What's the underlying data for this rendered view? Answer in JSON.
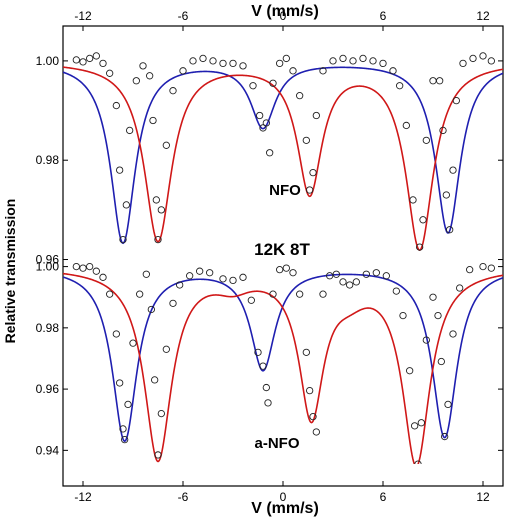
{
  "chart_data": {
    "type": "scatter",
    "x_label": "V (mm/s)",
    "y_label": "Relative transmission",
    "center_label": "12K  8T",
    "x_ticks": [
      -12,
      -6,
      0,
      6,
      12
    ],
    "xlim": [
      -13.2,
      13.2
    ],
    "panels": [
      {
        "label": "NFO",
        "ylim": [
          0.9595,
          1.003
        ],
        "y_ticks": [
          0.96,
          0.98,
          1.0
        ],
        "y_tick_labels": [
          "0.96",
          "0.98",
          "1.00"
        ],
        "series": [
          {
            "color": "#1f1fb0",
            "baseline": 1.0,
            "lines": [
              {
                "center": -9.6,
                "depth": 0.0365,
                "width": 0.9
              },
              {
                "center": -1.2,
                "depth": 0.013,
                "width": 0.9
              },
              {
                "center": 9.9,
                "depth": 0.0345,
                "width": 0.9
              }
            ]
          },
          {
            "color": "#d01818",
            "baseline": 1.0,
            "lines": [
              {
                "center": -7.5,
                "depth": 0.036,
                "width": 1.0
              },
              {
                "center": 1.6,
                "depth": 0.026,
                "width": 0.9
              },
              {
                "center": 8.2,
                "depth": 0.0375,
                "width": 1.0
              }
            ]
          }
        ],
        "points": [
          [
            -12.4,
            1.0002
          ],
          [
            -12.0,
            0.9998
          ],
          [
            -11.6,
            1.0005
          ],
          [
            -11.2,
            1.001
          ],
          [
            -10.8,
            0.9995
          ],
          [
            -10.4,
            0.9975
          ],
          [
            -10.0,
            0.991
          ],
          [
            -9.8,
            0.978
          ],
          [
            -9.6,
            0.964
          ],
          [
            -9.4,
            0.971
          ],
          [
            -9.2,
            0.986
          ],
          [
            -8.8,
            0.996
          ],
          [
            -8.4,
            0.999
          ],
          [
            -8.0,
            0.997
          ],
          [
            -7.8,
            0.988
          ],
          [
            -7.6,
            0.972
          ],
          [
            -7.5,
            0.964
          ],
          [
            -7.3,
            0.97
          ],
          [
            -7.0,
            0.983
          ],
          [
            -6.6,
            0.994
          ],
          [
            -6.0,
            0.998
          ],
          [
            -5.4,
            1.0
          ],
          [
            -4.8,
            1.0005
          ],
          [
            -4.2,
            1.0
          ],
          [
            -3.6,
            0.9995
          ],
          [
            -3.0,
            0.9995
          ],
          [
            -2.4,
            0.999
          ],
          [
            -1.8,
            0.995
          ],
          [
            -1.4,
            0.989
          ],
          [
            -1.2,
            0.9865
          ],
          [
            -1.0,
            0.9875
          ],
          [
            -0.8,
            0.9815
          ],
          [
            -0.6,
            0.9955
          ],
          [
            -0.2,
            0.9995
          ],
          [
            0.2,
            1.0005
          ],
          [
            0.6,
            0.998
          ],
          [
            1.0,
            0.993
          ],
          [
            1.4,
            0.984
          ],
          [
            1.6,
            0.974
          ],
          [
            1.8,
            0.9775
          ],
          [
            2.0,
            0.989
          ],
          [
            2.4,
            0.998
          ],
          [
            3.0,
            1.0
          ],
          [
            3.6,
            1.0005
          ],
          [
            4.2,
            1.0
          ],
          [
            4.8,
            1.0005
          ],
          [
            5.4,
            1.0
          ],
          [
            6.0,
            0.9995
          ],
          [
            6.6,
            0.998
          ],
          [
            7.0,
            0.995
          ],
          [
            7.4,
            0.987
          ],
          [
            7.8,
            0.972
          ],
          [
            8.2,
            0.9625
          ],
          [
            8.4,
            0.968
          ],
          [
            8.6,
            0.984
          ],
          [
            9.0,
            0.996
          ],
          [
            9.4,
            0.996
          ],
          [
            9.6,
            0.986
          ],
          [
            9.8,
            0.973
          ],
          [
            10.0,
            0.966
          ],
          [
            10.2,
            0.978
          ],
          [
            10.4,
            0.992
          ],
          [
            10.8,
            0.9995
          ],
          [
            11.4,
            1.0005
          ],
          [
            12.0,
            1.001
          ],
          [
            12.5,
            1.0
          ]
        ]
      },
      {
        "label": "a-NFO",
        "ylim": [
          0.9375,
          1.0015
        ],
        "y_ticks": [
          0.94,
          0.96,
          0.98,
          1.0
        ],
        "y_tick_labels": [
          "0.94",
          "0.96",
          "0.98",
          "1.00"
        ],
        "series": [
          {
            "color": "#1f1fb0",
            "baseline": 1.0,
            "lines": [
              {
                "center": -9.5,
                "depth": 0.0565,
                "width": 0.9
              },
              {
                "center": -1.2,
                "depth": 0.033,
                "width": 0.9
              },
              {
                "center": 9.7,
                "depth": 0.0555,
                "width": 0.9
              }
            ]
          },
          {
            "color": "#d01818",
            "baseline": 1.0,
            "lines": [
              {
                "center": -7.5,
                "depth": 0.0625,
                "width": 1.0
              },
              {
                "center": -3.0,
                "depth": 0.0045,
                "width": 1.3
              },
              {
                "center": 1.7,
                "depth": 0.047,
                "width": 0.9
              },
              {
                "center": 4.0,
                "depth": 0.0055,
                "width": 1.3
              },
              {
                "center": 8.0,
                "depth": 0.0635,
                "width": 1.0
              }
            ]
          }
        ],
        "points": [
          [
            -12.4,
            1.0
          ],
          [
            -12.0,
            0.9995
          ],
          [
            -11.6,
            1.0
          ],
          [
            -11.2,
            0.9985
          ],
          [
            -10.8,
            0.9965
          ],
          [
            -10.4,
            0.991
          ],
          [
            -10.0,
            0.978
          ],
          [
            -9.8,
            0.962
          ],
          [
            -9.6,
            0.947
          ],
          [
            -9.5,
            0.9435
          ],
          [
            -9.3,
            0.955
          ],
          [
            -9.0,
            0.975
          ],
          [
            -8.6,
            0.991
          ],
          [
            -8.2,
            0.9975
          ],
          [
            -7.9,
            0.986
          ],
          [
            -7.7,
            0.963
          ],
          [
            -7.5,
            0.9385
          ],
          [
            -7.3,
            0.952
          ],
          [
            -7.0,
            0.973
          ],
          [
            -6.6,
            0.988
          ],
          [
            -6.2,
            0.994
          ],
          [
            -5.6,
            0.997
          ],
          [
            -5.0,
            0.9985
          ],
          [
            -4.4,
            0.998
          ],
          [
            -3.6,
            0.996
          ],
          [
            -3.0,
            0.9955
          ],
          [
            -2.4,
            0.9965
          ],
          [
            -1.9,
            0.989
          ],
          [
            -1.5,
            0.972
          ],
          [
            -1.2,
            0.9675
          ],
          [
            -1.0,
            0.9605
          ],
          [
            -0.9,
            0.9555
          ],
          [
            -0.6,
            0.991
          ],
          [
            -0.2,
            0.999
          ],
          [
            0.2,
            0.9995
          ],
          [
            0.6,
            0.998
          ],
          [
            1.0,
            0.991
          ],
          [
            1.4,
            0.972
          ],
          [
            1.6,
            0.9595
          ],
          [
            1.8,
            0.951
          ],
          [
            2.0,
            0.946
          ],
          [
            2.4,
            0.991
          ],
          [
            2.8,
            0.997
          ],
          [
            3.2,
            0.9975
          ],
          [
            3.6,
            0.995
          ],
          [
            4.0,
            0.994
          ],
          [
            4.4,
            0.995
          ],
          [
            5.0,
            0.9975
          ],
          [
            5.6,
            0.998
          ],
          [
            6.2,
            0.997
          ],
          [
            6.8,
            0.992
          ],
          [
            7.2,
            0.984
          ],
          [
            7.6,
            0.966
          ],
          [
            7.9,
            0.948
          ],
          [
            8.1,
            0.9355
          ],
          [
            8.3,
            0.949
          ],
          [
            8.6,
            0.976
          ],
          [
            9.0,
            0.99
          ],
          [
            9.3,
            0.984
          ],
          [
            9.5,
            0.969
          ],
          [
            9.7,
            0.9445
          ],
          [
            9.9,
            0.955
          ],
          [
            10.2,
            0.978
          ],
          [
            10.6,
            0.993
          ],
          [
            11.2,
            0.999
          ],
          [
            12.0,
            1.0
          ],
          [
            12.5,
            0.9995
          ]
        ]
      }
    ]
  }
}
